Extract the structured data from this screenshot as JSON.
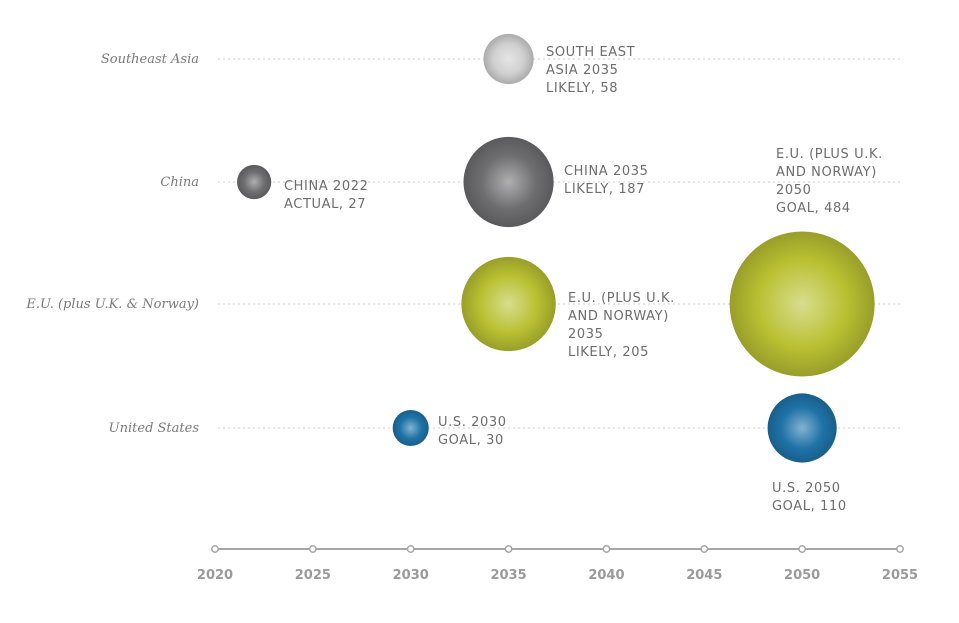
{
  "chart_data": {
    "type": "scatter",
    "title": "",
    "xlabel": "",
    "ylabel": "",
    "xlim": [
      2020,
      2055
    ],
    "x_ticks": [
      2020,
      2025,
      2030,
      2035,
      2040,
      2045,
      2050,
      2055
    ],
    "categories": [
      "Southeast Asia",
      "China",
      "E.U. (plus U.K. & Norway)",
      "United States"
    ],
    "grid": true,
    "colors": {
      "Southeast Asia": "#d0d0d0",
      "China": "#6e6e70",
      "E.U. (plus U.K. & Norway)": "#b9c132",
      "United States": "#1f73a8"
    },
    "points": [
      {
        "category": "Southeast Asia",
        "x": 2035,
        "value": 58,
        "label": [
          "SOUTH EAST",
          "ASIA 2035",
          "LIKELY, 58"
        ]
      },
      {
        "category": "China",
        "x": 2022,
        "value": 27,
        "label": [
          "CHINA 2022",
          "ACTUAL, 27"
        ]
      },
      {
        "category": "China",
        "x": 2035,
        "value": 187,
        "label": [
          "CHINA 2035",
          "LIKELY, 187"
        ]
      },
      {
        "category": "E.U. (plus U.K. & Norway)",
        "x": 2035,
        "value": 205,
        "label": [
          "E.U. (PLUS U.K.",
          "AND NORWAY)",
          "2035",
          "LIKELY, 205"
        ]
      },
      {
        "category": "E.U. (plus U.K. & Norway)",
        "x": 2050,
        "value": 484,
        "label": [
          "E.U. (PLUS U.K.",
          "AND NORWAY)",
          "2050",
          "GOAL, 484"
        ]
      },
      {
        "category": "United States",
        "x": 2030,
        "value": 30,
        "label": [
          "U.S. 2030",
          "GOAL, 30"
        ]
      },
      {
        "category": "United States",
        "x": 2050,
        "value": 110,
        "label": [
          "U.S. 2050",
          "GOAL, 110"
        ]
      }
    ]
  }
}
